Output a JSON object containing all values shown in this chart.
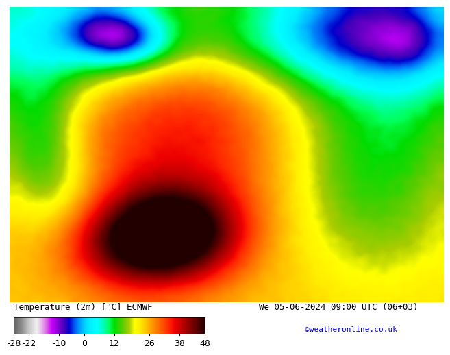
{
  "title_left": "Temperature (2m) [°C] ECMWF",
  "title_right": "We 05-06-2024 09:00 UTC (06+03)",
  "credit": "©weatheronline.co.uk",
  "colorbar_ticks": [
    -28,
    -22,
    -10,
    0,
    12,
    26,
    38,
    48
  ],
  "vmin": -28,
  "vmax": 48,
  "bg_color": "#ffffff",
  "label_fontsize": 9,
  "credit_color": "#0000cc",
  "color_stops": [
    [
      -28,
      "#646464"
    ],
    [
      -25,
      "#8c8c8c"
    ],
    [
      -22,
      "#c8c8c8"
    ],
    [
      -19,
      "#f0f0f0"
    ],
    [
      -17,
      "#e8b4f0"
    ],
    [
      -15,
      "#e064e8"
    ],
    [
      -13,
      "#cc00ff"
    ],
    [
      -10,
      "#7700cc"
    ],
    [
      -8,
      "#4400bb"
    ],
    [
      -6,
      "#0000cc"
    ],
    [
      -4,
      "#0055ee"
    ],
    [
      -2,
      "#0099ff"
    ],
    [
      0,
      "#00ccff"
    ],
    [
      2,
      "#00eeff"
    ],
    [
      5,
      "#00ffff"
    ],
    [
      8,
      "#00ffaa"
    ],
    [
      10,
      "#00ff55"
    ],
    [
      12,
      "#00dd00"
    ],
    [
      15,
      "#55cc00"
    ],
    [
      18,
      "#aacc00"
    ],
    [
      20,
      "#ffff00"
    ],
    [
      22,
      "#ffee00"
    ],
    [
      24,
      "#ffcc00"
    ],
    [
      26,
      "#ffaa00"
    ],
    [
      28,
      "#ff8800"
    ],
    [
      30,
      "#ff6600"
    ],
    [
      32,
      "#ff4400"
    ],
    [
      34,
      "#ff2200"
    ],
    [
      36,
      "#ee0000"
    ],
    [
      38,
      "#cc0000"
    ],
    [
      40,
      "#aa0000"
    ],
    [
      42,
      "#880000"
    ],
    [
      44,
      "#660000"
    ],
    [
      46,
      "#440000"
    ],
    [
      48,
      "#220000"
    ]
  ]
}
